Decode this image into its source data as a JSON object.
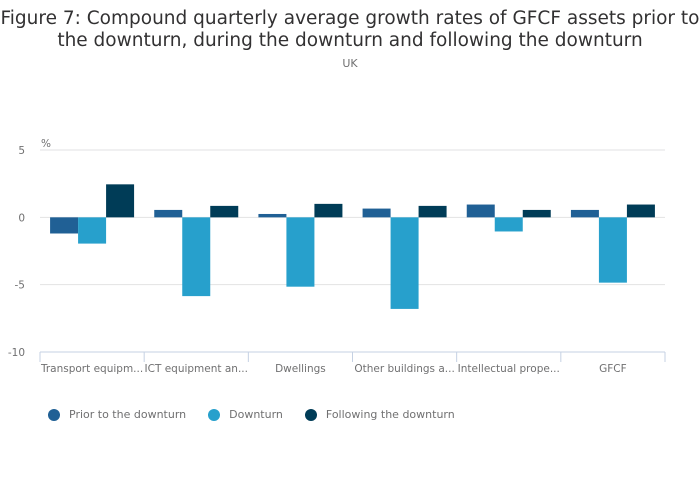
{
  "chart_data": {
    "type": "bar",
    "title": "Figure 7: Compound quarterly average growth rates of GFCF assets prior to the downturn, during the downturn and following the downturn",
    "subtitle": "UK",
    "ylabel": "%",
    "xlabel": "",
    "ylim": [
      -10,
      5
    ],
    "yticks": [
      5,
      0,
      -5,
      -10
    ],
    "grid": true,
    "legend_position": "bottom-left",
    "categories": [
      "Transport equipm...",
      "ICT equipment an...",
      "Dwellings",
      "Other buildings a...",
      "Intellectual prope...",
      "GFCF"
    ],
    "series": [
      {
        "name": "Prior to the downturn",
        "color": "#206095",
        "values": [
          -1.2,
          0.55,
          0.25,
          0.65,
          0.95,
          0.55
        ]
      },
      {
        "name": "Downturn",
        "color": "#27a0cc",
        "values": [
          -1.95,
          -5.85,
          -5.15,
          -6.8,
          -1.05,
          -4.85
        ]
      },
      {
        "name": "Following the downturn",
        "color": "#003c57",
        "values": [
          2.45,
          0.85,
          1.0,
          0.85,
          0.55,
          0.95
        ]
      }
    ]
  }
}
